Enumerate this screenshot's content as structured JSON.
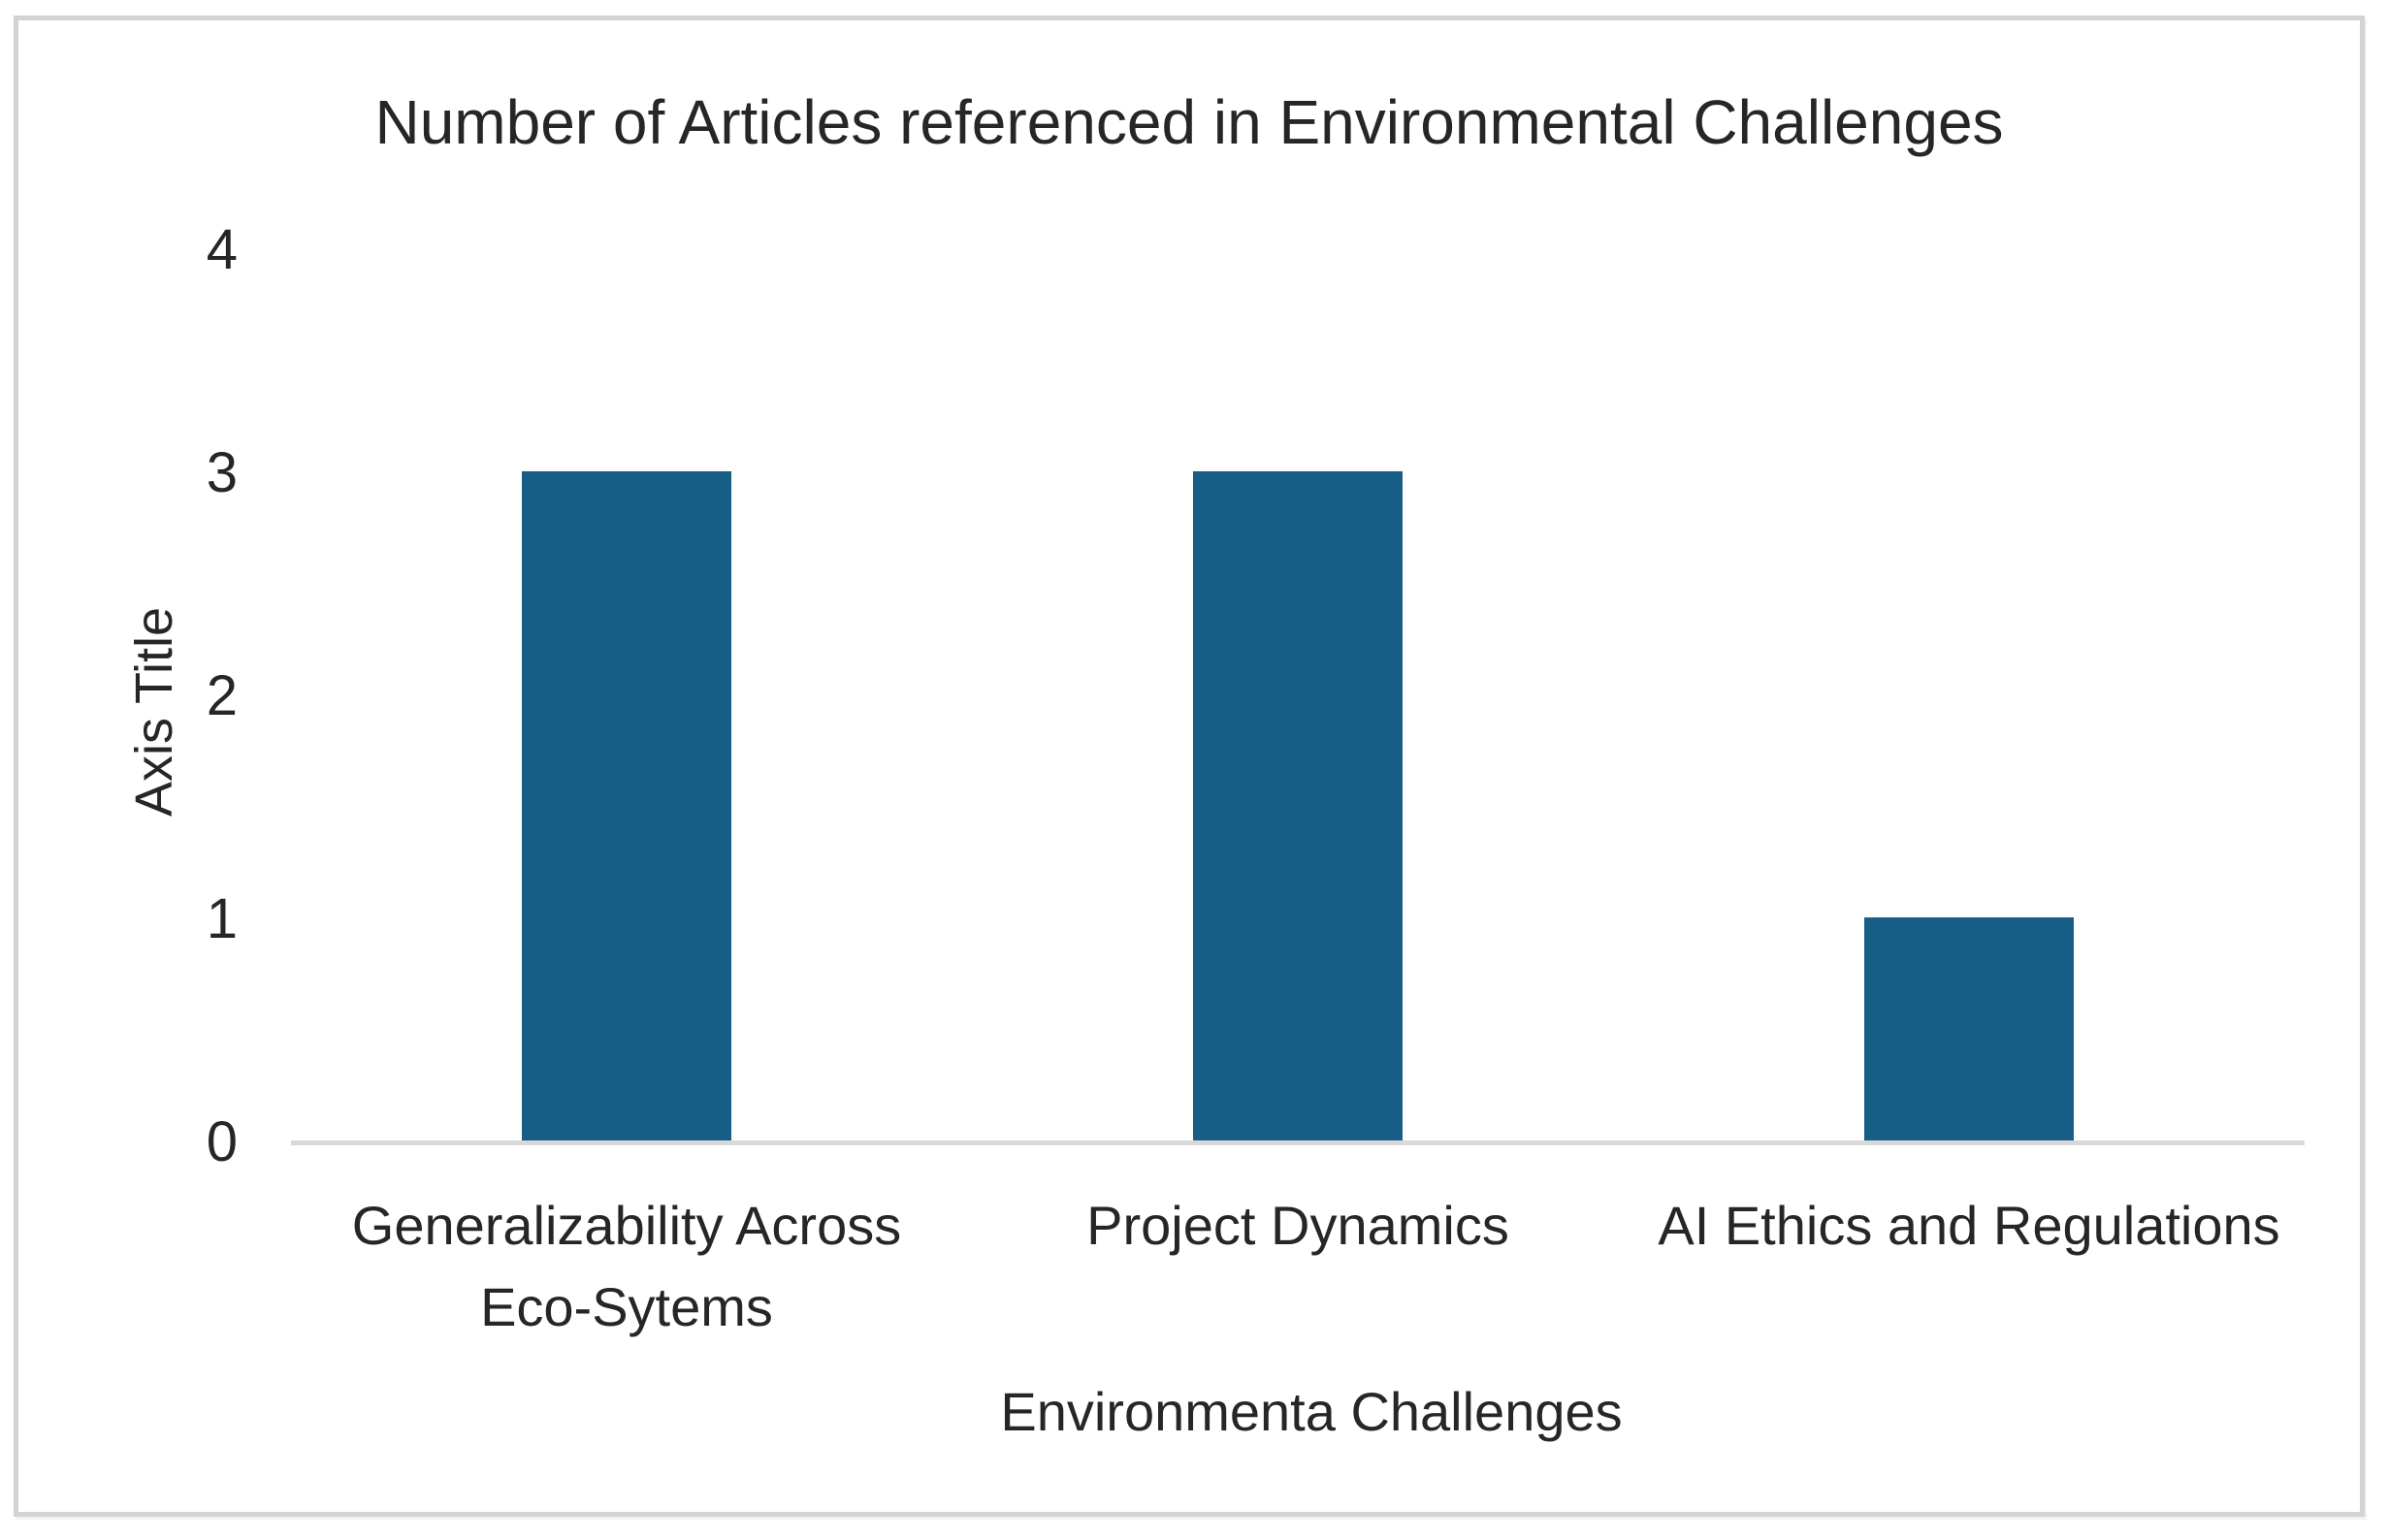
{
  "frame": {
    "background_color": "#ffffff",
    "border_color": "#d3d3d3"
  },
  "chart_data": {
    "type": "bar",
    "title": "Number of Articles referenced in Environmental Challenges",
    "categories": [
      "Generalizability Across Eco-Sytems",
      "Project Dynamics",
      "AI Ethics and Regulations"
    ],
    "values": [
      3,
      3,
      1
    ],
    "xlabel": "Environmenta Challenges",
    "ylabel": "Axis Title",
    "yticks": [
      0,
      1,
      2,
      3,
      4
    ],
    "ylim": [
      0,
      4
    ],
    "bar_color": "#165E85",
    "axis_line_color": "#d9d9d9",
    "text_color": "#262626",
    "grid": false,
    "legend": false
  }
}
